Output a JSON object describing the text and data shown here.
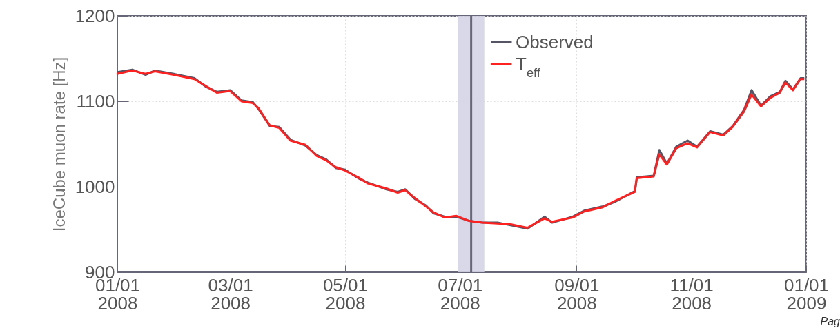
{
  "chart_data": {
    "type": "line",
    "ylabel": "IceCube muon rate [Hz]",
    "x": [
      "2008-01-01",
      "2008-01-09",
      "2008-01-16",
      "2008-01-21",
      "2008-01-31",
      "2008-02-11",
      "2008-02-17",
      "2008-02-23",
      "2008-03-01",
      "2008-03-07",
      "2008-03-13",
      "2008-03-16",
      "2008-03-22",
      "2008-03-27",
      "2008-04-02",
      "2008-04-10",
      "2008-04-16",
      "2008-04-21",
      "2008-04-26",
      "2008-05-01",
      "2008-05-08",
      "2008-05-13",
      "2008-05-23",
      "2008-05-29",
      "2008-06-02",
      "2008-06-07",
      "2008-06-13",
      "2008-06-17",
      "2008-06-23",
      "2008-06-29",
      "2008-07-06",
      "2008-07-13",
      "2008-07-21",
      "2008-07-28",
      "2008-08-06",
      "2008-08-15",
      "2008-08-19",
      "2008-08-30",
      "2008-09-05",
      "2008-09-15",
      "2008-09-21",
      "2008-10-02",
      "2008-10-03",
      "2008-10-12",
      "2008-10-15",
      "2008-10-19",
      "2008-10-24",
      "2008-10-30",
      "2008-11-04",
      "2008-11-11",
      "2008-11-18",
      "2008-11-23",
      "2008-11-29",
      "2008-12-03",
      "2008-12-08",
      "2008-12-13",
      "2008-12-18",
      "2008-12-21",
      "2008-12-25",
      "2008-12-29",
      "2008-12-31"
    ],
    "series": [
      {
        "name": "Observed",
        "color": "#555566",
        "values": [
          1134,
          1137,
          1131,
          1136,
          1132,
          1127,
          1117,
          1111,
          1113,
          1101,
          1099,
          1091,
          1071,
          1070,
          1055,
          1048,
          1037,
          1032,
          1022,
          1020,
          1010,
          1005,
          997,
          994,
          997,
          986,
          978,
          969,
          965,
          965,
          960,
          958,
          958,
          955,
          951,
          965,
          958,
          965,
          972,
          977,
          982,
          995,
          1011,
          1013,
          1043,
          1027,
          1047,
          1054,
          1047,
          1065,
          1061,
          1071,
          1090,
          1113,
          1095,
          1106,
          1111,
          1124,
          1114,
          1127,
          1127
        ]
      },
      {
        "name": "T$_{eff}$",
        "color": "#ff2020",
        "values": [
          1132,
          1136,
          1132,
          1135,
          1131,
          1126,
          1118,
          1110,
          1112,
          1100,
          1098,
          1092,
          1072,
          1069,
          1054,
          1049,
          1036,
          1031,
          1023,
          1019,
          1011,
          1004,
          998,
          993,
          996,
          987,
          977,
          970,
          964,
          966,
          960,
          958,
          957,
          956,
          952,
          963,
          959,
          964,
          971,
          976,
          983,
          994,
          1010,
          1012,
          1038,
          1026,
          1045,
          1051,
          1046,
          1064,
          1060,
          1070,
          1088,
          1108,
          1094,
          1104,
          1110,
          1122,
          1113,
          1126,
          1126
        ]
      }
    ],
    "xlim": [
      "2008-01-01",
      "2009-01-01"
    ],
    "xticks": [
      {
        "value": "2008-01-01",
        "label": "01/01\n2008"
      },
      {
        "value": "2008-03-01",
        "label": "03/01\n2008"
      },
      {
        "value": "2008-05-01",
        "label": "05/01\n2008"
      },
      {
        "value": "2008-07-01",
        "label": "07/01\n2008"
      },
      {
        "value": "2008-09-01",
        "label": "09/01\n2008"
      },
      {
        "value": "2008-11-01",
        "label": "11/01\n2008"
      },
      {
        "value": "2009-01-01",
        "label": "01/01\n2009"
      }
    ],
    "ylim": [
      900,
      1200
    ],
    "yticks": [
      900,
      1000,
      1100,
      1200
    ],
    "bands": [
      {
        "axis": "x",
        "from": "2008-06-30",
        "to": "2008-07-14",
        "color": "#d4d4e6"
      }
    ],
    "ref_lines": [
      {
        "axis": "x",
        "value": "2008-07-07",
        "color": "#666677"
      }
    ],
    "grid": true,
    "legend": "top",
    "line_style": "solid",
    "annotations": [
      "Pag"
    ]
  }
}
